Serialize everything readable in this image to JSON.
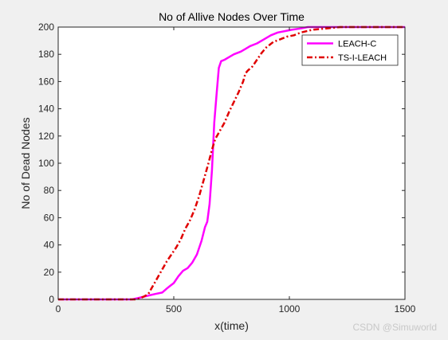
{
  "chart_data": {
    "type": "line",
    "title": "No of Allive Nodes Over Time",
    "xlabel": "x(time)",
    "ylabel": "No of Dead Nodes",
    "xlim": [
      0,
      1500
    ],
    "ylim": [
      0,
      200
    ],
    "xticks": [
      0,
      500,
      1000,
      1500
    ],
    "yticks": [
      0,
      20,
      40,
      60,
      80,
      100,
      120,
      140,
      160,
      180,
      200
    ],
    "grid": false,
    "legend_position": "top-right",
    "series": [
      {
        "name": "LEACH-C",
        "color": "#ff00ff",
        "style": "solid",
        "points": [
          [
            0,
            0
          ],
          [
            320,
            0
          ],
          [
            345,
            1
          ],
          [
            370,
            2
          ],
          [
            395,
            3
          ],
          [
            420,
            4
          ],
          [
            450,
            5
          ],
          [
            470,
            8
          ],
          [
            485,
            10
          ],
          [
            500,
            12
          ],
          [
            520,
            17
          ],
          [
            540,
            21
          ],
          [
            560,
            23
          ],
          [
            580,
            27
          ],
          [
            600,
            33
          ],
          [
            620,
            43
          ],
          [
            635,
            53
          ],
          [
            645,
            57
          ],
          [
            655,
            70
          ],
          [
            665,
            95
          ],
          [
            675,
            130
          ],
          [
            685,
            150
          ],
          [
            695,
            170
          ],
          [
            705,
            175
          ],
          [
            720,
            176
          ],
          [
            740,
            178
          ],
          [
            760,
            180
          ],
          [
            790,
            182
          ],
          [
            810,
            184
          ],
          [
            830,
            186
          ],
          [
            860,
            188
          ],
          [
            890,
            191
          ],
          [
            920,
            194
          ],
          [
            950,
            196
          ],
          [
            980,
            197
          ],
          [
            1010,
            198
          ],
          [
            1050,
            199
          ],
          [
            1080,
            200
          ],
          [
            1500,
            200
          ]
        ]
      },
      {
        "name": "TS-I-LEACH",
        "color": "#e00000",
        "style": "dashdot",
        "points": [
          [
            0,
            0
          ],
          [
            340,
            0
          ],
          [
            370,
            2
          ],
          [
            390,
            4
          ],
          [
            410,
            10
          ],
          [
            430,
            16
          ],
          [
            450,
            22
          ],
          [
            470,
            28
          ],
          [
            490,
            33
          ],
          [
            510,
            38
          ],
          [
            530,
            44
          ],
          [
            550,
            52
          ],
          [
            570,
            58
          ],
          [
            590,
            66
          ],
          [
            610,
            76
          ],
          [
            630,
            88
          ],
          [
            650,
            100
          ],
          [
            665,
            110
          ],
          [
            680,
            118
          ],
          [
            700,
            124
          ],
          [
            720,
            130
          ],
          [
            740,
            138
          ],
          [
            760,
            145
          ],
          [
            780,
            152
          ],
          [
            800,
            160
          ],
          [
            810,
            166
          ],
          [
            820,
            168
          ],
          [
            840,
            171
          ],
          [
            860,
            176
          ],
          [
            880,
            181
          ],
          [
            900,
            185
          ],
          [
            930,
            189
          ],
          [
            960,
            191
          ],
          [
            990,
            193
          ],
          [
            1020,
            194
          ],
          [
            1050,
            196
          ],
          [
            1100,
            198
          ],
          [
            1160,
            199
          ],
          [
            1220,
            200
          ],
          [
            1500,
            200
          ]
        ]
      }
    ]
  },
  "watermark": "CSDN @Simuworld"
}
